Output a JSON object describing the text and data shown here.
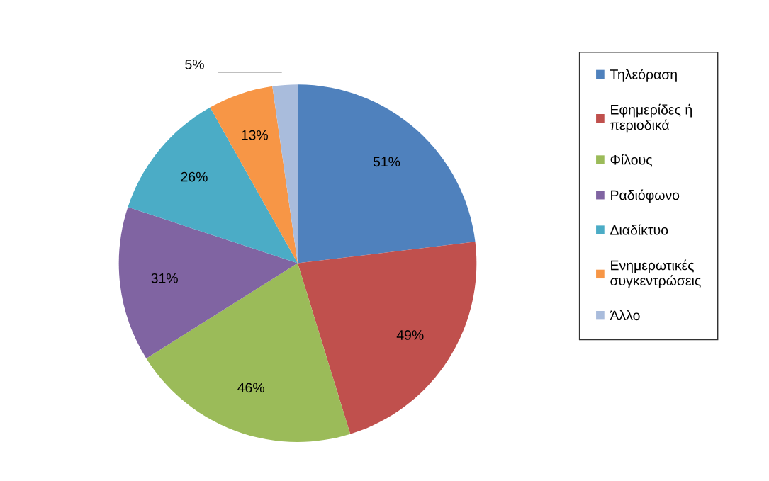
{
  "chart_data": {
    "type": "pie",
    "categories": [
      "Τηλεόραση",
      "Εφημερίδες ή\nπεριοδικά",
      "Φίλους",
      "Ραδιόφωνο",
      "Διαδίκτυο",
      "Ενημερωτικές\nσυγκεντρώσεις",
      "Άλλο"
    ],
    "values": [
      51,
      49,
      46,
      31,
      26,
      13,
      5
    ],
    "colors": [
      "#4f81bd",
      "#c0504d",
      "#9bbb59",
      "#8064a2",
      "#4bacc6",
      "#f79646",
      "#a9bcdc"
    ],
    "value_labels": [
      "51%",
      "49%",
      "46%",
      "31%",
      "26%",
      "13%",
      "5%"
    ],
    "legend": "right"
  }
}
